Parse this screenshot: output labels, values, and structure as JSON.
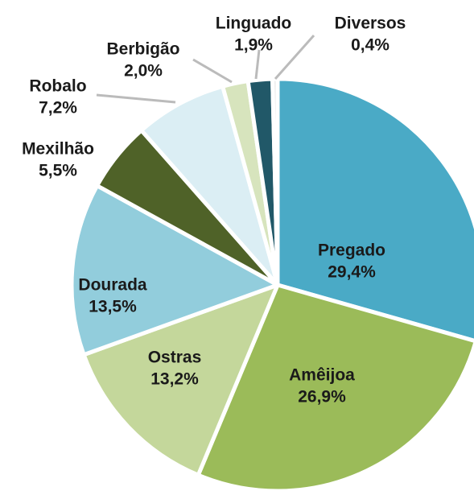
{
  "chart_data": {
    "type": "pie",
    "categories": [
      "Pregado",
      "Amêijoa",
      "Ostras",
      "Dourada",
      "Mexilhão",
      "Robalo",
      "Berbigão",
      "Linguado",
      "Diversos"
    ],
    "values": [
      29.4,
      26.9,
      13.2,
      13.5,
      5.5,
      7.2,
      2.0,
      1.9,
      0.4
    ],
    "value_labels": [
      "29,4%",
      "26,9%",
      "13,2%",
      "13,5%",
      "5,5%",
      "7,2%",
      "2,0%",
      "1,9%",
      "0,4%"
    ],
    "colors": [
      "#4aaac6",
      "#9bbb59",
      "#c4d79b",
      "#92cddc",
      "#4f6228",
      "#dbeef4",
      "#d7e4bd",
      "#215868",
      "#e8e8e8"
    ]
  }
}
